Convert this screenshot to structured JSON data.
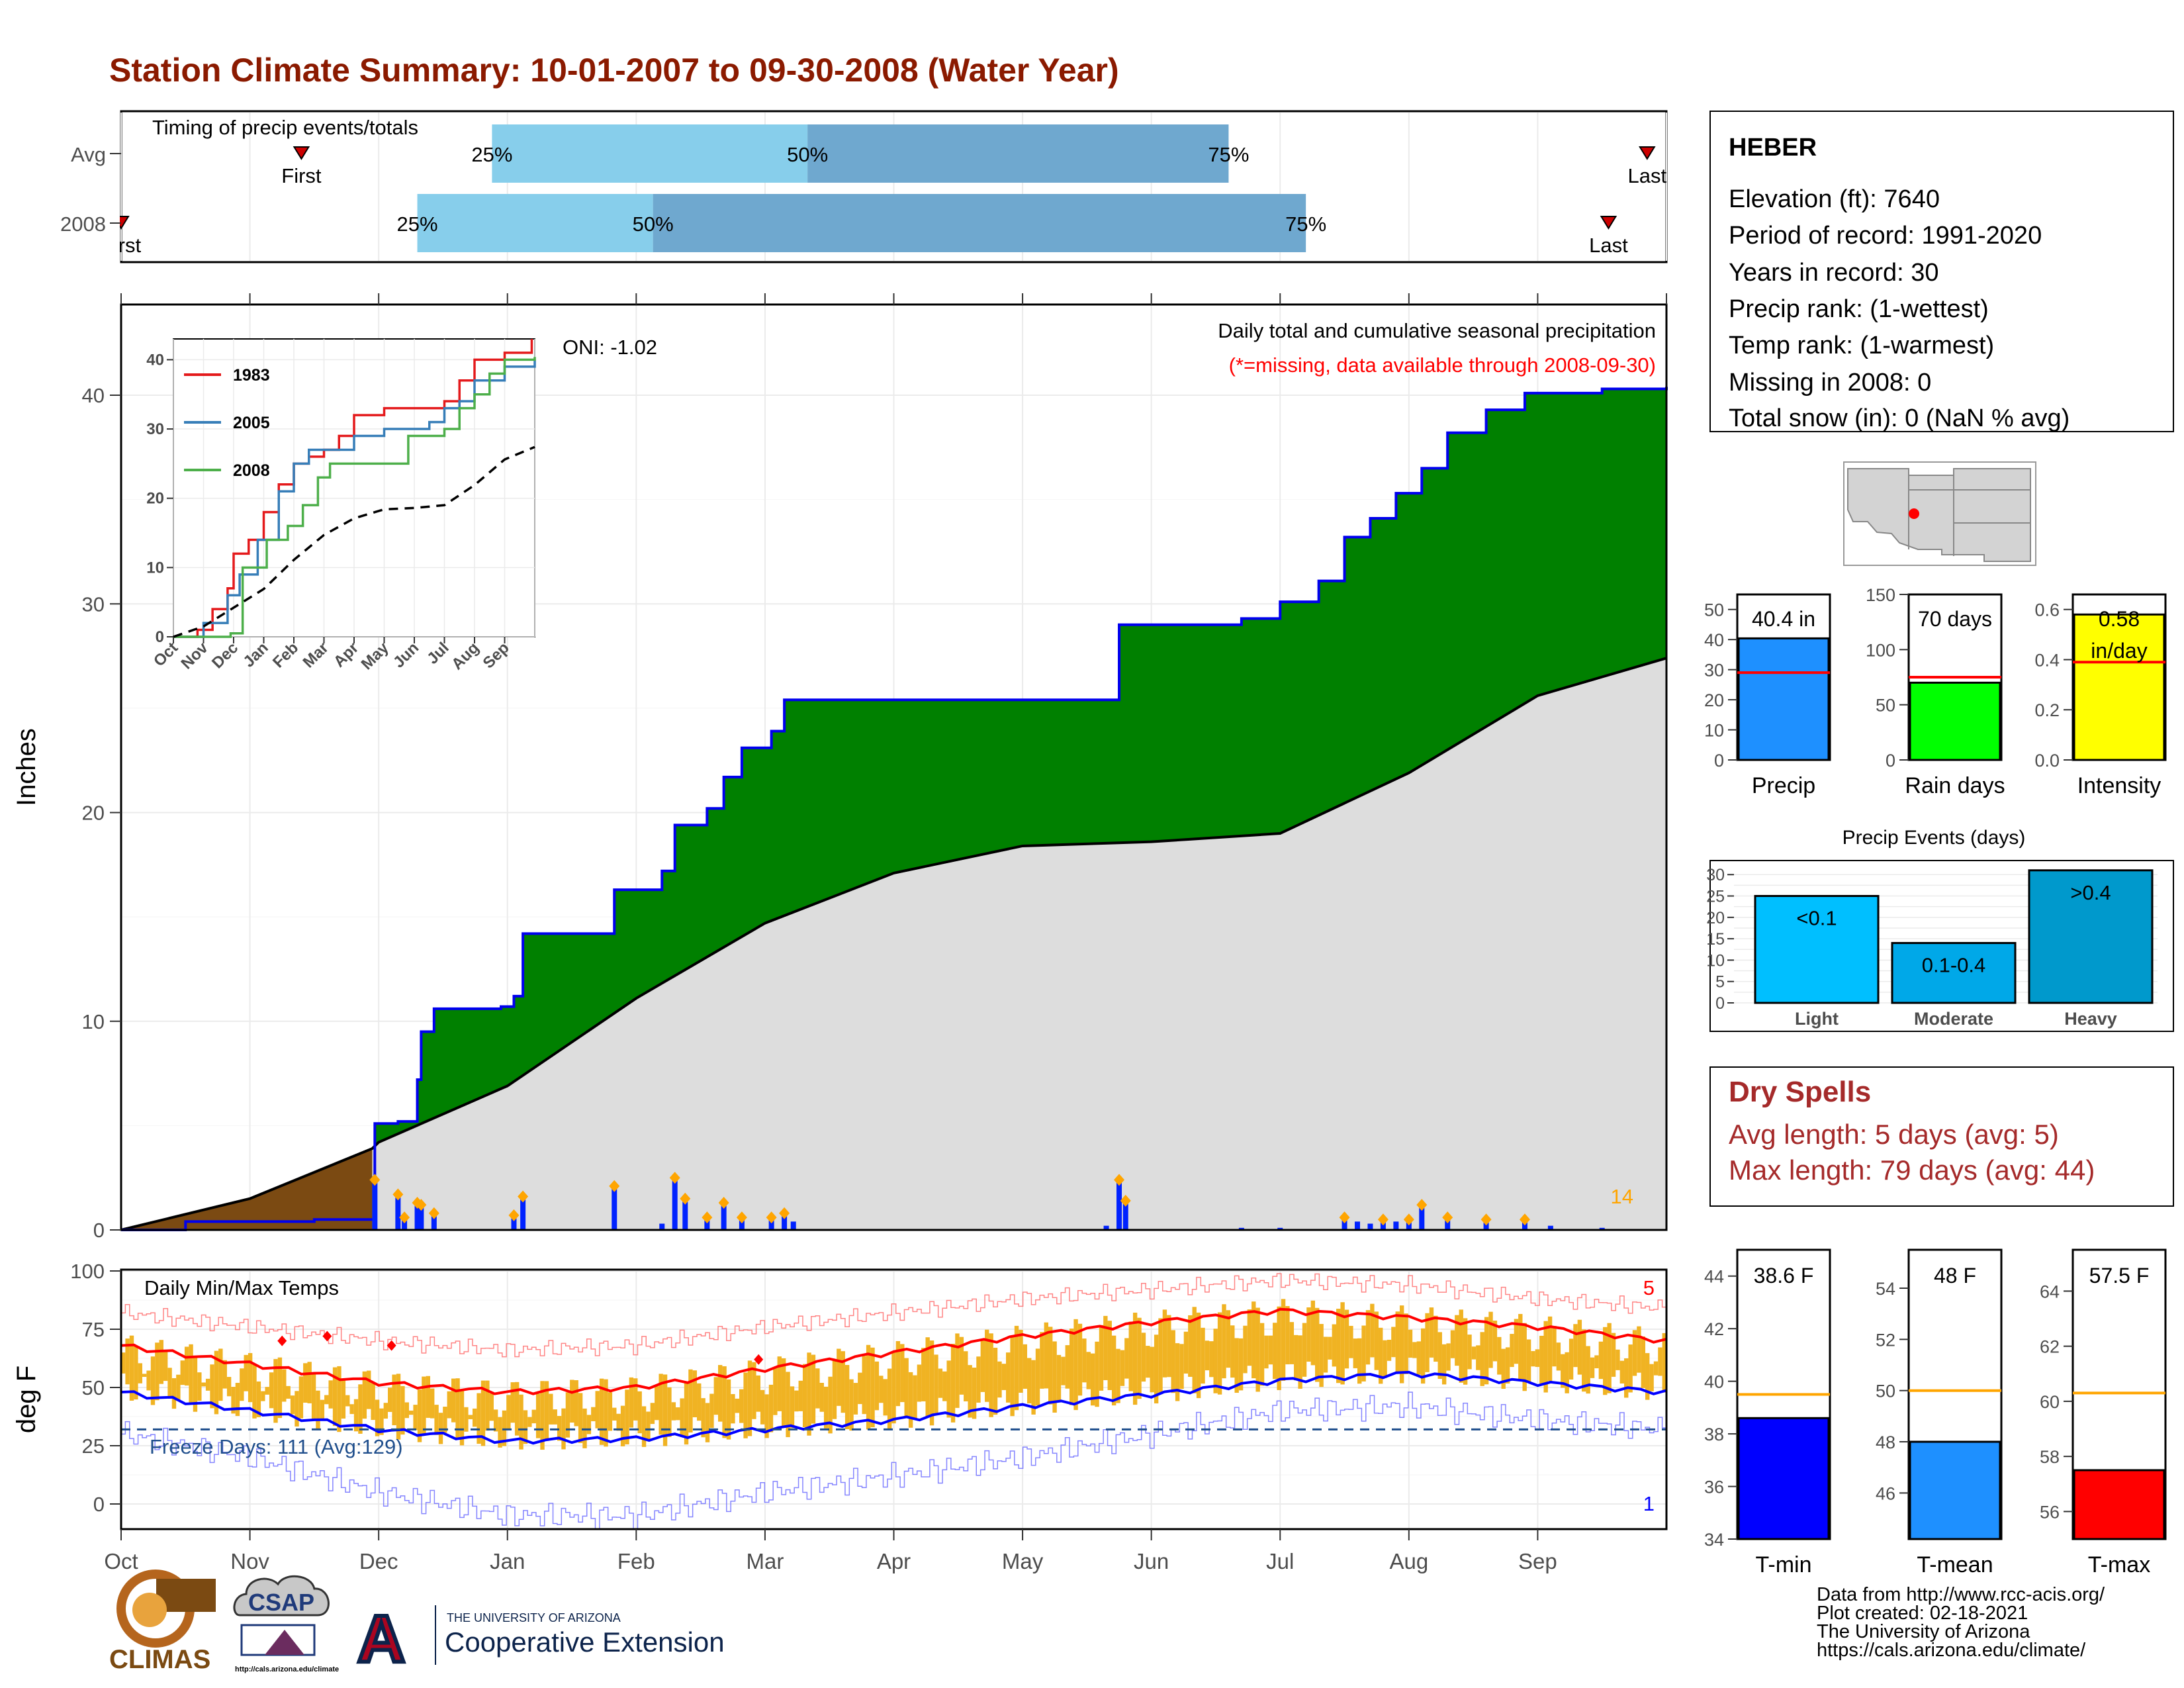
{
  "title": "Station Climate Summary: 10-01-2007 to 09-30-2008 (Water Year)",
  "colors": {
    "title": "#8B1A00",
    "q1": "#87CEEB",
    "q2": "#6FA8CF",
    "cum2008": "#008000",
    "cumAvgEarly": "#7B4A12",
    "avgArea": "#DDDDDD",
    "dailyBar": "#0022FF",
    "onlineDot": "#FFA500",
    "tempBar": "#F0B323",
    "tmaxAvg": "#FF0000",
    "tminAvg": "#0000FF",
    "precipBar": "#1E90FF",
    "rainBar": "#00FF00",
    "intensityBar": "#FFFF00",
    "light": "#00BFFF",
    "moderate": "#00A8E8",
    "heavy": "#0099CC",
    "dryspell": "#A52A2A"
  },
  "timing": {
    "label": "Timing of precip events/totals",
    "rows": [
      {
        "name": "Avg",
        "first_month": 1.4,
        "p25": 2.88,
        "p50": 5.33,
        "p75": 8.6,
        "last_month": 11.85,
        "first_label": "First",
        "last_label": "Last",
        "l25": "25%",
        "l50": "50%",
        "l75": "75%"
      },
      {
        "name": "2008",
        "first_month": 0.0,
        "p25": 2.3,
        "p50": 4.13,
        "p75": 9.2,
        "last_month": 11.55,
        "first_label": "First",
        "last_label": "Last",
        "l25": "25%",
        "l50": "50%",
        "l75": "75%"
      }
    ]
  },
  "months": [
    "Oct",
    "Nov",
    "Dec",
    "Jan",
    "Feb",
    "Mar",
    "Apr",
    "May",
    "Jun",
    "Jul",
    "Aug",
    "Sep"
  ],
  "main": {
    "ylabel": "Inches",
    "yticks": [
      0,
      10,
      20,
      30,
      40
    ],
    "oni": "ONI: -1.02",
    "legend_title": "Daily total and cumulative seasonal precipitation",
    "missing_note": "(*=missing, data available through 2008-09-30)",
    "count_label": "14"
  },
  "chart_data": {
    "type": "area",
    "x_unit": "month of water year (0 = Oct 1)",
    "ylim": [
      0,
      44
    ],
    "cumulative_2008": [
      [
        0,
        0
      ],
      [
        0.5,
        0.4
      ],
      [
        1.0,
        0.4
      ],
      [
        1.5,
        0.5
      ],
      [
        1.95,
        0.5
      ],
      [
        1.97,
        5.1
      ],
      [
        2.15,
        5.2
      ],
      [
        2.3,
        7.2
      ],
      [
        2.33,
        9.5
      ],
      [
        2.43,
        10.6
      ],
      [
        2.95,
        10.7
      ],
      [
        3.05,
        11.2
      ],
      [
        3.12,
        14.2
      ],
      [
        3.78,
        14.2
      ],
      [
        3.83,
        16.3
      ],
      [
        4.2,
        17.2
      ],
      [
        4.3,
        19.4
      ],
      [
        4.55,
        20.2
      ],
      [
        4.68,
        21.7
      ],
      [
        4.82,
        23.1
      ],
      [
        5.05,
        23.9
      ],
      [
        5.15,
        25.4
      ],
      [
        6.0,
        25.4
      ],
      [
        7.0,
        25.4
      ],
      [
        7.65,
        25.4
      ],
      [
        7.75,
        29.0
      ],
      [
        8.0,
        29.0
      ],
      [
        8.7,
        29.3
      ],
      [
        9.0,
        30.1
      ],
      [
        9.3,
        31.1
      ],
      [
        9.5,
        33.2
      ],
      [
        9.7,
        34.1
      ],
      [
        9.9,
        35.3
      ],
      [
        10.1,
        36.5
      ],
      [
        10.3,
        38.2
      ],
      [
        10.6,
        39.3
      ],
      [
        10.9,
        40.1
      ],
      [
        11.1,
        40.1
      ],
      [
        11.5,
        40.3
      ],
      [
        12.0,
        40.4
      ]
    ],
    "cumulative_avg": [
      [
        0,
        0
      ],
      [
        1,
        1.5
      ],
      [
        1.95,
        3.9
      ],
      [
        2.0,
        4.2
      ],
      [
        3,
        6.9
      ],
      [
        4,
        11.1
      ],
      [
        5,
        14.7
      ],
      [
        6,
        17.1
      ],
      [
        7,
        18.4
      ],
      [
        8,
        18.6
      ],
      [
        9,
        19.0
      ],
      [
        10,
        21.9
      ],
      [
        11,
        25.6
      ],
      [
        12,
        27.4
      ]
    ],
    "daily_2008": [
      [
        1.97,
        2.4
      ],
      [
        2.15,
        1.7
      ],
      [
        2.2,
        0.6
      ],
      [
        2.3,
        1.3
      ],
      [
        2.33,
        1.2
      ],
      [
        2.43,
        0.8
      ],
      [
        3.05,
        0.7
      ],
      [
        3.12,
        1.6
      ],
      [
        3.83,
        2.1
      ],
      [
        4.2,
        0.3
      ],
      [
        4.3,
        2.5
      ],
      [
        4.38,
        1.5
      ],
      [
        4.55,
        0.6
      ],
      [
        4.68,
        1.3
      ],
      [
        4.82,
        0.6
      ],
      [
        5.05,
        0.6
      ],
      [
        5.15,
        0.8
      ],
      [
        5.22,
        0.4
      ],
      [
        7.65,
        0.2
      ],
      [
        7.75,
        2.4
      ],
      [
        7.8,
        1.4
      ],
      [
        8.7,
        0.1
      ],
      [
        9.0,
        0.1
      ],
      [
        9.5,
        0.6
      ],
      [
        9.6,
        0.4
      ],
      [
        9.7,
        0.3
      ],
      [
        9.8,
        0.5
      ],
      [
        9.9,
        0.4
      ],
      [
        10.0,
        0.5
      ],
      [
        10.1,
        1.2
      ],
      [
        10.3,
        0.6
      ],
      [
        10.6,
        0.5
      ],
      [
        10.9,
        0.5
      ],
      [
        11.1,
        0.2
      ],
      [
        11.5,
        0.1
      ]
    ],
    "inset": {
      "yticks": [
        0,
        10,
        20,
        30,
        40
      ],
      "xticks": [
        "Oct",
        "Nov",
        "Dec",
        "Jan",
        "Feb",
        "Mar",
        "Apr",
        "May",
        "Jun",
        "Jul",
        "Aug",
        "Sep"
      ],
      "series": [
        {
          "name": "1983",
          "color": "#E41A1C",
          "values": [
            [
              0,
              0
            ],
            [
              0.8,
              1
            ],
            [
              1.3,
              4
            ],
            [
              1.8,
              7
            ],
            [
              2.0,
              12
            ],
            [
              2.5,
              14
            ],
            [
              3,
              18
            ],
            [
              3.5,
              22
            ],
            [
              4,
              25
            ],
            [
              4.5,
              26
            ],
            [
              5,
              27
            ],
            [
              5.5,
              29
            ],
            [
              6,
              32
            ],
            [
              7,
              33
            ],
            [
              8,
              33
            ],
            [
              9,
              34
            ],
            [
              9.5,
              37
            ],
            [
              10,
              40
            ],
            [
              11,
              41
            ],
            [
              11.9,
              43
            ]
          ]
        },
        {
          "name": "2005",
          "color": "#377EB8",
          "values": [
            [
              0,
              0
            ],
            [
              1,
              2
            ],
            [
              1.8,
              6
            ],
            [
              2.2,
              9
            ],
            [
              2.8,
              14
            ],
            [
              3.5,
              21
            ],
            [
              4,
              25
            ],
            [
              4.5,
              27
            ],
            [
              5,
              27
            ],
            [
              6,
              29
            ],
            [
              7,
              30
            ],
            [
              8,
              30
            ],
            [
              8.5,
              31
            ],
            [
              9,
              33
            ],
            [
              9.5,
              34
            ],
            [
              10,
              37
            ],
            [
              11,
              39
            ],
            [
              12,
              40
            ]
          ]
        },
        {
          "name": "2008",
          "color": "#4DAF4A",
          "values": [
            [
              0,
              0
            ],
            [
              1.9,
              0.5
            ],
            [
              2.3,
              10
            ],
            [
              3.1,
              14
            ],
            [
              3.8,
              16
            ],
            [
              4.3,
              19
            ],
            [
              4.8,
              23
            ],
            [
              5.2,
              25
            ],
            [
              7.7,
              25
            ],
            [
              7.8,
              29
            ],
            [
              9,
              30
            ],
            [
              9.5,
              33
            ],
            [
              10,
              35
            ],
            [
              10.5,
              38
            ],
            [
              11,
              40
            ],
            [
              12,
              40.4
            ]
          ]
        },
        {
          "name": "",
          "color": "#000000",
          "dashed": true,
          "values": [
            [
              0,
              0
            ],
            [
              1,
              1.5
            ],
            [
              2,
              4.2
            ],
            [
              3,
              6.9
            ],
            [
              4,
              11.1
            ],
            [
              5,
              14.7
            ],
            [
              6,
              17.1
            ],
            [
              7,
              18.4
            ],
            [
              8,
              18.6
            ],
            [
              9,
              19.0
            ],
            [
              10,
              21.9
            ],
            [
              11,
              25.6
            ],
            [
              12,
              27.4
            ]
          ]
        }
      ]
    },
    "temps": {
      "yticks": [
        0,
        25,
        50,
        75,
        100
      ],
      "ylabel": "deg F",
      "title": "Daily Min/Max Temps",
      "freeze_label": "Freeze Days: 111 (Avg:129)",
      "freeze_line": 32,
      "count_top": "5",
      "count_bottom": "1",
      "avg_max": [
        [
          0,
          68
        ],
        [
          1,
          60
        ],
        [
          2,
          52
        ],
        [
          3,
          48
        ],
        [
          4,
          50
        ],
        [
          5,
          58
        ],
        [
          6,
          65
        ],
        [
          7,
          72
        ],
        [
          8,
          78
        ],
        [
          9,
          83
        ],
        [
          10,
          80
        ],
        [
          11,
          76
        ],
        [
          12,
          70
        ]
      ],
      "avg_min": [
        [
          0,
          48
        ],
        [
          1,
          40
        ],
        [
          2,
          32
        ],
        [
          3,
          27
        ],
        [
          4,
          28
        ],
        [
          5,
          32
        ],
        [
          6,
          36
        ],
        [
          7,
          42
        ],
        [
          8,
          47
        ],
        [
          9,
          53
        ],
        [
          10,
          56
        ],
        [
          11,
          52
        ],
        [
          12,
          48
        ]
      ],
      "rec_max": [
        [
          0,
          82
        ],
        [
          1,
          76
        ],
        [
          2,
          70
        ],
        [
          3,
          66
        ],
        [
          4,
          68
        ],
        [
          5,
          76
        ],
        [
          6,
          82
        ],
        [
          7,
          88
        ],
        [
          8,
          92
        ],
        [
          9,
          96
        ],
        [
          10,
          94
        ],
        [
          11,
          88
        ],
        [
          12,
          84
        ]
      ],
      "rec_min": [
        [
          0,
          30
        ],
        [
          1,
          20
        ],
        [
          2,
          5
        ],
        [
          3,
          -5
        ],
        [
          4,
          -5
        ],
        [
          5,
          5
        ],
        [
          6,
          12
        ],
        [
          7,
          20
        ],
        [
          8,
          30
        ],
        [
          9,
          40
        ],
        [
          10,
          42
        ],
        [
          11,
          36
        ],
        [
          12,
          32
        ]
      ]
    },
    "summary_bars": [
      {
        "label": "Precip",
        "value": 40.4,
        "avg": 29,
        "display": "40.4 in",
        "yticks": [
          0,
          10,
          20,
          30,
          40,
          50
        ],
        "ymax": 55
      },
      {
        "label": "Rain days",
        "value": 70,
        "avg": 75,
        "display": "70 days",
        "yticks": [
          0,
          50,
          100,
          150
        ],
        "ymax": 150
      },
      {
        "label": "Intensity",
        "value": 0.58,
        "avg": 0.39,
        "display": "0.58",
        "sub": "in/day",
        "yticks": [
          "0.0",
          "0.2",
          "0.4",
          "0.6"
        ],
        "ymax": 0.66
      }
    ],
    "precip_events": {
      "title": "Precip Events (days)",
      "categories": [
        "Light",
        "Moderate",
        "Heavy"
      ],
      "values": [
        25,
        14,
        31
      ],
      "labels": [
        "<0.1",
        "0.1-0.4",
        ">0.4"
      ],
      "yticks": [
        0,
        5,
        10,
        15,
        20,
        25,
        30
      ]
    },
    "temp_bars": [
      {
        "label": "T-min",
        "value": 38.6,
        "avg": 39.5,
        "display": "38.6 F",
        "yticks": [
          34,
          36,
          38,
          40,
          42,
          44
        ],
        "ymin": 34,
        "ymax": 45
      },
      {
        "label": "T-mean",
        "value": 48.0,
        "avg": 50.0,
        "display": "48 F",
        "yticks": [
          46,
          48,
          50,
          52,
          54
        ],
        "ymin": 44.2,
        "ymax": 55.5
      },
      {
        "label": "T-max",
        "value": 57.5,
        "avg": 60.3,
        "display": "57.5 F",
        "yticks": [
          56,
          58,
          60,
          62,
          64
        ],
        "ymin": 55,
        "ymax": 65.5
      }
    ]
  },
  "station": {
    "name": "HEBER",
    "lines": [
      "Elevation (ft): 7640",
      "Period of record: 1991-2020",
      "Years in record: 30",
      "Precip rank:  (1-wettest)",
      "Temp rank:  (1-warmest)",
      "Missing in 2008: 0",
      "Total snow (in): 0 (NaN % avg)"
    ]
  },
  "dry_spells": {
    "title": "Dry Spells",
    "avg": "Avg length: 5 days (avg: 5)",
    "max": "Max length: 79 days (avg: 44)"
  },
  "footer": {
    "lines": [
      "Data from http://www.rcc-acis.org/",
      "Plot created: 02-18-2021",
      "The University of Arizona",
      "https://cals.arizona.edu/climate/"
    ]
  },
  "logos": {
    "climas": "CLIMAS",
    "csap": "CSAP",
    "csap_url": "http://cals.arizona.edu/climate",
    "ua_small": "THE UNIVERSITY OF ARIZONA",
    "ua_big": "Cooperative Extension",
    "ua_letter": "A"
  }
}
